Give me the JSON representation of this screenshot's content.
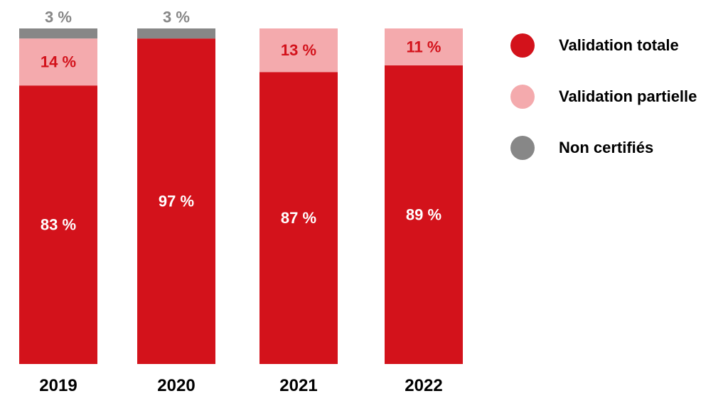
{
  "chart_data": {
    "type": "bar",
    "stacked": true,
    "categories": [
      "2019",
      "2020",
      "2021",
      "2022"
    ],
    "series": [
      {
        "name": "Validation totale",
        "color": "#d3121b",
        "label_color": "#ffffff",
        "values": [
          83,
          97,
          87,
          89
        ],
        "labels": [
          "83 %",
          "97 %",
          "87 %",
          "89 %"
        ]
      },
      {
        "name": "Validation partielle",
        "color": "#f4aaad",
        "label_color": "#d3121b",
        "values": [
          14,
          0,
          13,
          11
        ],
        "labels": [
          "14 %",
          "",
          "13 %",
          "11 %"
        ]
      },
      {
        "name": "Non certifiés",
        "color": "#878787",
        "label_color": "#878787",
        "values": [
          3,
          3,
          0,
          0
        ],
        "labels": [
          "3 %",
          "3 %",
          "",
          ""
        ]
      }
    ],
    "ylim": [
      0,
      100
    ],
    "grid": false,
    "legend_position": "right"
  }
}
